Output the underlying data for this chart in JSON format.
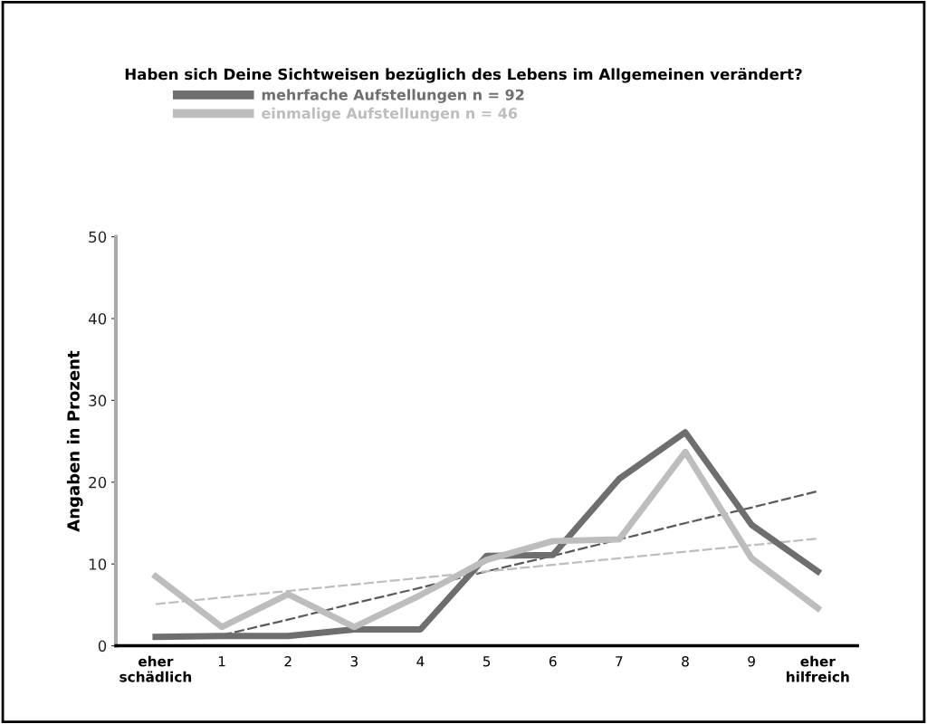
{
  "chart_data": {
    "type": "line",
    "title": "Haben sich Deine Sichtweisen bezüglich des Lebens im Allgemeinen verändert?",
    "ylabel": "Angaben in Prozent",
    "categories": [
      "eher\nschädlich",
      "1",
      "2",
      "3",
      "4",
      "5",
      "6",
      "7",
      "8",
      "9",
      "eher\nhilfreich"
    ],
    "series": [
      {
        "name": "mehrfache Aufstellungen n = 92",
        "color": "#6e6e6e",
        "values": [
          1.1,
          1.2,
          1.2,
          2,
          2,
          11,
          11.1,
          20.4,
          26.1,
          14.8,
          9.1
        ]
      },
      {
        "name": "einmalige Aufstellungen n = 46",
        "color": "#bdbdbd",
        "values": [
          8.5,
          2.3,
          6.3,
          2.3,
          6.2,
          10.5,
          12.8,
          13,
          23.7,
          10.7,
          4.6
        ]
      },
      {
        "type": "line",
        "line_style": "dashed",
        "color": "#5a5a5a",
        "values": [
          null,
          1.3,
          3.2,
          5.2,
          7.1,
          9.1,
          11,
          13,
          15,
          16.9,
          18.9
        ]
      },
      {
        "type": "line",
        "line_style": "dashed",
        "color": "#bdbdbd",
        "values": [
          5.1,
          5.9,
          6.7,
          7.5,
          8.3,
          9.1,
          9.9,
          10.7,
          11.5,
          12.3,
          13.1
        ]
      }
    ],
    "ylim": [
      0,
      50
    ],
    "yticks": [
      0,
      10,
      20,
      30,
      40,
      50
    ],
    "grid": false,
    "legend": "top left",
    "marker": "none",
    "line_style": "solid"
  }
}
